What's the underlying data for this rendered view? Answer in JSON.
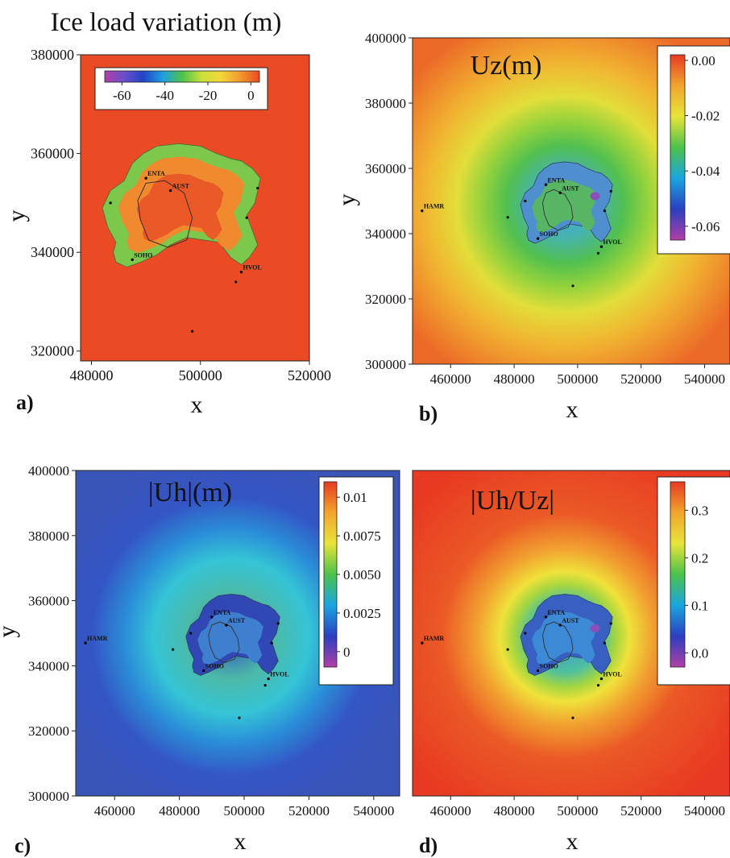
{
  "chart_data": [
    {
      "id": "a",
      "type": "heatmap",
      "panel_label": "a)",
      "title": "Ice load variation (m)",
      "xlabel": "x",
      "ylabel": "y",
      "xlim": [
        478000,
        520000
      ],
      "ylim": [
        318000,
        380000
      ],
      "xticks": [
        480000,
        500000,
        520000
      ],
      "yticks": [
        320000,
        340000,
        360000,
        380000
      ],
      "colorbar": {
        "orientation": "horizontal",
        "min": -68,
        "max": 4,
        "ticks": [
          -60,
          -40,
          -20,
          0
        ],
        "colors": [
          "#b23fa8",
          "#6a4fc9",
          "#2244c8",
          "#1ea0e0",
          "#4cc24a",
          "#c8e03a",
          "#f3d73a",
          "#f29a2e",
          "#ea4a25"
        ]
      },
      "background": "#ea4b25",
      "stations": [
        {
          "name": "ENTA",
          "x": 490000,
          "y": 355000
        },
        {
          "name": "AUST",
          "x": 494500,
          "y": 352500
        },
        {
          "name": "SOHO",
          "x": 487500,
          "y": 338500
        },
        {
          "name": "HVOL",
          "x": 507500,
          "y": 336000
        }
      ],
      "points": [
        {
          "x": 483500,
          "y": 350000
        },
        {
          "x": 510500,
          "y": 353000
        },
        {
          "x": 508500,
          "y": 347000
        },
        {
          "x": 506500,
          "y": 334000
        },
        {
          "x": 498500,
          "y": 324000
        }
      ]
    },
    {
      "id": "b",
      "type": "heatmap",
      "panel_label": "b)",
      "title": "Uz(m)",
      "xlabel": "x",
      "ylabel": "y",
      "xlim": [
        448000,
        548000
      ],
      "ylim": [
        300000,
        400000
      ],
      "xticks": [
        460000,
        480000,
        500000,
        520000,
        540000
      ],
      "yticks": [
        300000,
        320000,
        340000,
        360000,
        380000,
        400000
      ],
      "colorbar": {
        "orientation": "vertical",
        "min": -0.065,
        "max": 0.002,
        "ticks": [
          0.0,
          -0.02,
          -0.04,
          -0.06
        ],
        "tick_labels": [
          "0.00",
          "-0.02",
          "-0.04",
          "-0.06"
        ],
        "colors": [
          "#b23fa8",
          "#2a3fc0",
          "#1aa5e0",
          "#4cc24a",
          "#e8e43a",
          "#f2a52e",
          "#e63a22"
        ]
      },
      "field": {
        "center": [
          496000,
          349000
        ],
        "stops": [
          [
            0,
            "#3f9fd8"
          ],
          [
            0.16,
            "#46b3b4"
          ],
          [
            0.3,
            "#52c04f"
          ],
          [
            0.42,
            "#93d23c"
          ],
          [
            0.55,
            "#e2de3a"
          ],
          [
            0.72,
            "#f1b431"
          ],
          [
            1.0,
            "#ec6a27"
          ]
        ],
        "radius": 62000
      },
      "stations": [
        {
          "name": "HAMR",
          "x": 451000,
          "y": 347000
        },
        {
          "name": "ENTA",
          "x": 490000,
          "y": 355000
        },
        {
          "name": "AUST",
          "x": 494500,
          "y": 352500
        },
        {
          "name": "SOHO",
          "x": 487500,
          "y": 338500
        },
        {
          "name": "HVOL",
          "x": 507500,
          "y": 336000
        }
      ],
      "points": [
        {
          "x": 483500,
          "y": 350000
        },
        {
          "x": 510500,
          "y": 353000
        },
        {
          "x": 508500,
          "y": 347000
        },
        {
          "x": 506500,
          "y": 334000
        },
        {
          "x": 498500,
          "y": 324000
        },
        {
          "x": 478000,
          "y": 345000
        }
      ]
    },
    {
      "id": "c",
      "type": "heatmap",
      "panel_label": "c)",
      "title": "|Uh|(m)",
      "xlabel": "x",
      "ylabel": "y",
      "xlim": [
        448000,
        548000
      ],
      "ylim": [
        300000,
        400000
      ],
      "xticks": [
        460000,
        480000,
        500000,
        520000,
        540000
      ],
      "yticks": [
        300000,
        320000,
        340000,
        360000,
        380000,
        400000
      ],
      "colorbar": {
        "orientation": "vertical",
        "min": -0.001,
        "max": 0.011,
        "ticks": [
          0.01,
          0.0075,
          0.005,
          0.0025,
          0
        ],
        "tick_labels": [
          "0.01",
          "0.0075",
          "0.0050",
          "0.0025",
          "0"
        ],
        "colors": [
          "#b23fa8",
          "#2a3fc0",
          "#1aa5e0",
          "#4cc24a",
          "#e8e43a",
          "#f2a52e",
          "#e63a22"
        ]
      },
      "field": {
        "center": [
          496000,
          349000
        ],
        "stops": [
          [
            0,
            "#2e4dbf"
          ],
          [
            0.22,
            "#4cb9a8"
          ],
          [
            0.4,
            "#34c4d6"
          ],
          [
            0.55,
            "#2a8dd8"
          ],
          [
            0.72,
            "#3455c4"
          ],
          [
            1.0,
            "#3a55b8"
          ]
        ],
        "radius": 60000
      },
      "stations": [
        {
          "name": "HAMR",
          "x": 451000,
          "y": 347000
        },
        {
          "name": "ENTA",
          "x": 490000,
          "y": 355000
        },
        {
          "name": "AUST",
          "x": 494500,
          "y": 352500
        },
        {
          "name": "SOHO",
          "x": 487500,
          "y": 338500
        },
        {
          "name": "HVOL",
          "x": 507500,
          "y": 336000
        }
      ],
      "points": [
        {
          "x": 483500,
          "y": 350000
        },
        {
          "x": 510500,
          "y": 353000
        },
        {
          "x": 508500,
          "y": 347000
        },
        {
          "x": 506500,
          "y": 334000
        },
        {
          "x": 498500,
          "y": 324000
        },
        {
          "x": 478000,
          "y": 345000
        }
      ]
    },
    {
      "id": "d",
      "type": "heatmap",
      "panel_label": "d)",
      "title": "|Uh/Uz|",
      "xlabel": "x",
      "ylabel": "",
      "xlim": [
        448000,
        548000
      ],
      "ylim": [
        300000,
        400000
      ],
      "xticks": [
        460000,
        480000,
        500000,
        520000,
        540000
      ],
      "yticks": [],
      "colorbar": {
        "orientation": "vertical",
        "min": -0.03,
        "max": 0.36,
        "ticks": [
          0.3,
          0.2,
          0.1,
          0.0
        ],
        "tick_labels": [
          "0.3",
          "0.2",
          "0.1",
          "0.0"
        ],
        "colors": [
          "#b23fa8",
          "#2a3fc0",
          "#1aa5e0",
          "#4cc24a",
          "#e8e43a",
          "#f2a52e",
          "#e63a22"
        ]
      },
      "field": {
        "center": [
          496000,
          349000
        ],
        "stops": [
          [
            0,
            "#3b8fd4"
          ],
          [
            0.18,
            "#4fc0a0"
          ],
          [
            0.26,
            "#a6d640"
          ],
          [
            0.33,
            "#f0e23a"
          ],
          [
            0.45,
            "#f1a030"
          ],
          [
            0.62,
            "#eb5a26"
          ],
          [
            1.0,
            "#e83a22"
          ]
        ],
        "radius": 62000
      },
      "stations": [
        {
          "name": "HAMR",
          "x": 451000,
          "y": 347000
        },
        {
          "name": "ENTA",
          "x": 490000,
          "y": 355000
        },
        {
          "name": "AUST",
          "x": 494500,
          "y": 352500
        },
        {
          "name": "SOHO",
          "x": 487500,
          "y": 338500
        },
        {
          "name": "HVOL",
          "x": 507500,
          "y": 336000
        }
      ],
      "points": [
        {
          "x": 483500,
          "y": 350000
        },
        {
          "x": 510500,
          "y": 353000
        },
        {
          "x": 508500,
          "y": 347000
        },
        {
          "x": 506500,
          "y": 334000
        },
        {
          "x": 498500,
          "y": 324000
        },
        {
          "x": 478000,
          "y": 345000
        }
      ]
    }
  ]
}
